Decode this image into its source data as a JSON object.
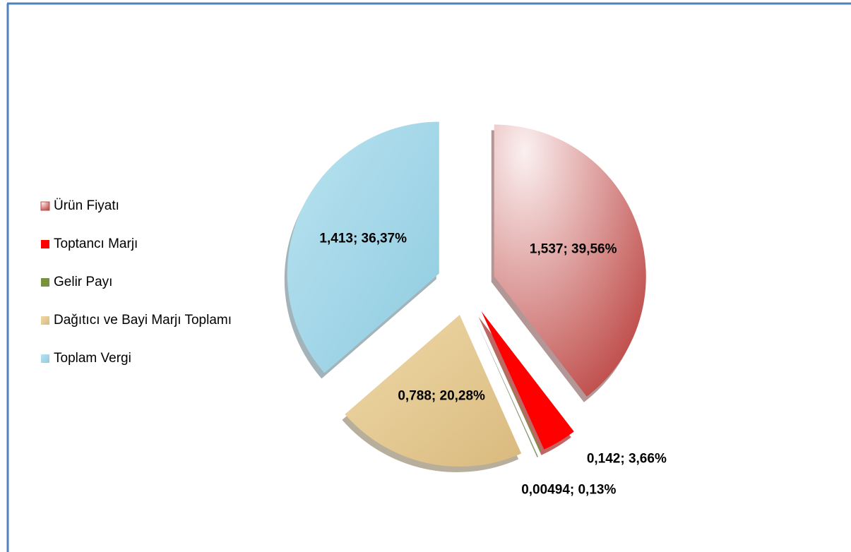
{
  "chart_data": {
    "type": "pie",
    "categories": [
      "Ürün Fiyatı",
      "Toptancı Marjı",
      "Gelir Payı",
      "Dağıtıcı ve Bayi Marjı Toplamı",
      "Toplam Vergi"
    ],
    "values": [
      1.537,
      0.142,
      0.00494,
      0.788,
      1.413
    ],
    "value_labels": [
      "1,537; 39,56%",
      "0,142; 3,66%",
      "0,00494; 0,13%",
      "0,788; 20,28%",
      "1,413; 36,37%"
    ],
    "colors": [
      "#d98b8b",
      "#ff0000",
      "#76923c",
      "#e6cc97",
      "#a9daea"
    ],
    "legend": "left"
  }
}
